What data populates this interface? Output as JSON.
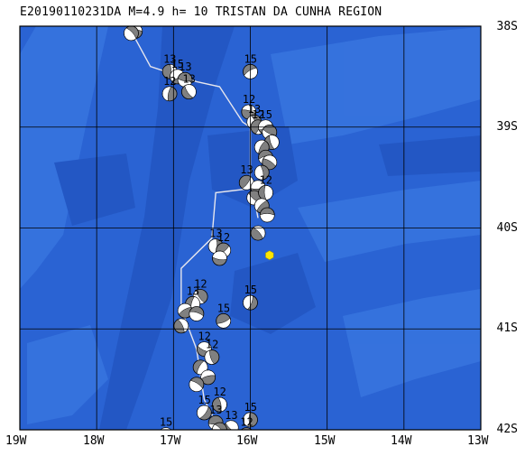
{
  "title": "E20190110231DA M=4.9 h= 10 TRISTAN DA CUNHA REGION",
  "colors": {
    "ocean_base": "#2a63d3",
    "ocean_light": "#3f7fe6",
    "ocean_dark": "#1e4fb8",
    "grid": "#000000",
    "track": "#e6e6ee",
    "epicenter": "#ffe600",
    "beachball_dark": "#808080",
    "beachball_light": "#ffffff"
  },
  "lat_labels": [
    "38S",
    "39S",
    "40S",
    "41S",
    "42S"
  ],
  "lon_labels": [
    "19W",
    "18W",
    "17W",
    "16W",
    "15W",
    "14W",
    "13W"
  ],
  "extent": {
    "lon_min": -19,
    "lon_max": -13,
    "lat_min": -42,
    "lat_max": -38
  },
  "epicenter": {
    "lon": -15.75,
    "lat": -40.27,
    "symbol": "hexagon-yellow"
  },
  "track_lines": [
    [
      [
        -17.55,
        -38.05
      ],
      [
        -17.3,
        -38.4
      ],
      [
        -16.7,
        -38.55
      ],
      [
        -16.4,
        -38.6
      ],
      [
        -16.1,
        -38.95
      ],
      [
        -16.0,
        -39.0
      ],
      [
        -16.0,
        -39.5
      ],
      [
        -15.9,
        -39.9
      ]
    ],
    [
      [
        -15.9,
        -39.6
      ],
      [
        -16.45,
        -39.65
      ],
      [
        -16.5,
        -40.1
      ],
      [
        -16.9,
        -40.4
      ],
      [
        -16.9,
        -40.8
      ],
      [
        -16.7,
        -41.2
      ],
      [
        -16.6,
        -41.7
      ],
      [
        -16.4,
        -42.0
      ]
    ]
  ],
  "mechanisms": [
    {
      "lon": -17.5,
      "lat": -38.05,
      "label": "15"
    },
    {
      "lon": -17.55,
      "lat": -38.07,
      "label": "13"
    },
    {
      "lon": -17.05,
      "lat": -38.45,
      "label": "13"
    },
    {
      "lon": -16.95,
      "lat": -38.5,
      "label": "15"
    },
    {
      "lon": -16.85,
      "lat": -38.53,
      "label": "13"
    },
    {
      "lon": -16.8,
      "lat": -38.65,
      "label": "13"
    },
    {
      "lon": -17.05,
      "lat": -38.67,
      "label": "12"
    },
    {
      "lon": -16.0,
      "lat": -38.45,
      "label": "15"
    },
    {
      "lon": -16.02,
      "lat": -38.85,
      "label": "12"
    },
    {
      "lon": -15.95,
      "lat": -38.95,
      "label": "13"
    },
    {
      "lon": -15.9,
      "lat": -39.0,
      "label": "12"
    },
    {
      "lon": -15.8,
      "lat": -39.0,
      "label": "15"
    },
    {
      "lon": -15.75,
      "lat": -39.05,
      "label": ""
    },
    {
      "lon": -15.72,
      "lat": -39.15,
      "label": ""
    },
    {
      "lon": -15.85,
      "lat": -39.2,
      "label": ""
    },
    {
      "lon": -15.8,
      "lat": -39.3,
      "label": ""
    },
    {
      "lon": -15.75,
      "lat": -39.35,
      "label": ""
    },
    {
      "lon": -15.85,
      "lat": -39.45,
      "label": ""
    },
    {
      "lon": -16.05,
      "lat": -39.55,
      "label": "13"
    },
    {
      "lon": -15.9,
      "lat": -39.6,
      "label": ""
    },
    {
      "lon": -15.95,
      "lat": -39.7,
      "label": ""
    },
    {
      "lon": -15.8,
      "lat": -39.65,
      "label": "12"
    },
    {
      "lon": -15.85,
      "lat": -39.78,
      "label": ""
    },
    {
      "lon": -15.78,
      "lat": -39.87,
      "label": ""
    },
    {
      "lon": -15.9,
      "lat": -40.05,
      "label": ""
    },
    {
      "lon": -16.45,
      "lat": -40.18,
      "label": "13"
    },
    {
      "lon": -16.35,
      "lat": -40.22,
      "label": "12"
    },
    {
      "lon": -16.4,
      "lat": -40.3,
      "label": ""
    },
    {
      "lon": -16.65,
      "lat": -40.68,
      "label": "12"
    },
    {
      "lon": -16.75,
      "lat": -40.75,
      "label": "13"
    },
    {
      "lon": -16.85,
      "lat": -40.82,
      "label": ""
    },
    {
      "lon": -16.7,
      "lat": -40.85,
      "label": ""
    },
    {
      "lon": -16.9,
      "lat": -40.97,
      "label": ""
    },
    {
      "lon": -16.0,
      "lat": -40.74,
      "label": "15"
    },
    {
      "lon": -16.35,
      "lat": -40.92,
      "label": "15"
    },
    {
      "lon": -16.6,
      "lat": -41.2,
      "label": "12"
    },
    {
      "lon": -16.5,
      "lat": -41.28,
      "label": "12"
    },
    {
      "lon": -16.65,
      "lat": -41.38,
      "label": ""
    },
    {
      "lon": -16.55,
      "lat": -41.48,
      "label": ""
    },
    {
      "lon": -16.7,
      "lat": -41.55,
      "label": ""
    },
    {
      "lon": -16.4,
      "lat": -41.75,
      "label": "12"
    },
    {
      "lon": -16.6,
      "lat": -41.83,
      "label": "15"
    },
    {
      "lon": -16.45,
      "lat": -41.93,
      "label": "13"
    },
    {
      "lon": -16.25,
      "lat": -41.98,
      "label": "13"
    },
    {
      "lon": -16.0,
      "lat": -41.9,
      "label": "15"
    },
    {
      "lon": -16.05,
      "lat": -42.05,
      "label": "12"
    },
    {
      "lon": -17.1,
      "lat": -42.05,
      "label": "15"
    },
    {
      "lon": -16.4,
      "lat": -42.0,
      "label": ""
    }
  ]
}
